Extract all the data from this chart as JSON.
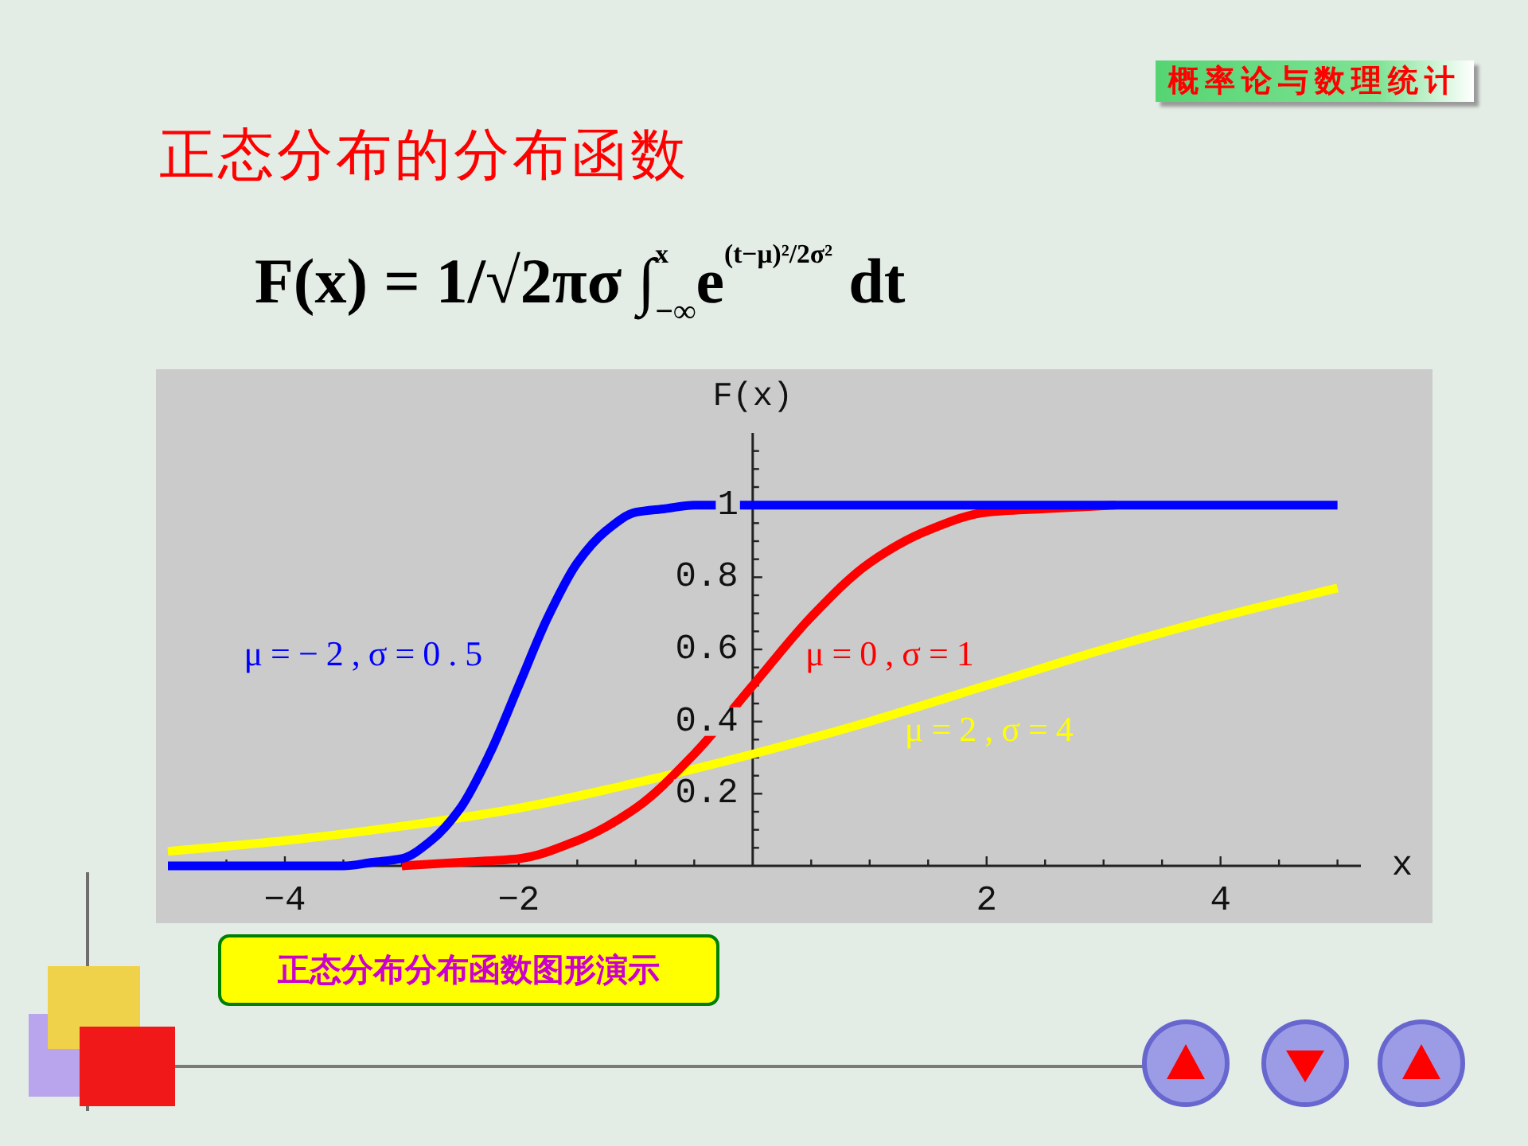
{
  "chart_data": {
    "type": "line",
    "title": "正态分布的分布函数",
    "subtitle": "F(x) = 1/√2πσ ∫$_{−∞}$$^{x}$e$^{(t−μ)²/2σ²}$ dt",
    "xlabel": "x",
    "ylabel": "F(x)",
    "annotations": [
      "概率论与数理统计",
      "正态分布分布函数图形演示"
    ],
    "xlim": [
      -5,
      5.2
    ],
    "ylim": [
      0,
      1.2
    ],
    "xticks": [
      {
        "value": -4.5,
        "label": null
      },
      {
        "value": -4,
        "label": "−4"
      },
      {
        "value": -3.5,
        "label": null
      },
      {
        "value": -3,
        "label": null
      },
      {
        "value": -2.5,
        "label": null
      },
      {
        "value": -2,
        "label": "−2"
      },
      {
        "value": -1.5,
        "label": null
      },
      {
        "value": -1,
        "label": null
      },
      {
        "value": -0.5,
        "label": null
      },
      {
        "value": 0.5,
        "label": null
      },
      {
        "value": 1,
        "label": null
      },
      {
        "value": 1.5,
        "label": null
      },
      2,
      {
        "value": 2.5,
        "label": null
      },
      {
        "value": 3,
        "label": null
      },
      {
        "value": 3.5,
        "label": null
      },
      4,
      {
        "value": 4.5,
        "label": null
      },
      {
        "value": 5,
        "label": null
      }
    ],
    "yticks": [
      {
        "value": 0.05,
        "label": null
      },
      {
        "value": 0.1,
        "label": null
      },
      {
        "value": 0.15,
        "label": null
      },
      0.2,
      {
        "value": 0.25,
        "label": null
      },
      {
        "value": 0.3,
        "label": null
      },
      {
        "value": 0.35,
        "label": null
      },
      0.4,
      {
        "value": 0.45,
        "label": null
      },
      {
        "value": 0.5,
        "label": null
      },
      {
        "value": 0.55,
        "label": null
      },
      0.6,
      {
        "value": 0.65,
        "label": null
      },
      {
        "value": 0.7,
        "label": null
      },
      {
        "value": 0.75,
        "label": null
      },
      0.8,
      {
        "value": 0.85,
        "label": null
      },
      {
        "value": 0.9,
        "label": null
      },
      {
        "value": 0.95,
        "label": null
      },
      1,
      {
        "value": 1.05,
        "label": null
      },
      {
        "value": 1.1,
        "label": null
      },
      {
        "value": 1.15,
        "label": null
      }
    ],
    "series": [
      {
        "name": "μ=−2,σ=0.5",
        "color": "#0000ff",
        "x": [
          -5,
          -4,
          -3.5,
          -3.25,
          -3,
          -2.75,
          -2.5,
          -2.25,
          -2,
          -1.75,
          -1.5,
          -1.25,
          -1,
          -0.75,
          -0.5,
          0,
          1,
          2,
          3,
          4,
          5
        ],
        "values": [
          0,
          0,
          0,
          0.01,
          0.02,
          0.07,
          0.16,
          0.31,
          0.5,
          0.69,
          0.84,
          0.93,
          0.98,
          0.99,
          1,
          1,
          1,
          1,
          1,
          1,
          1
        ]
      },
      {
        "name": "μ=0,σ=1",
        "color": "#ff0000",
        "x": [
          -3,
          -2.5,
          -2,
          -1.5,
          -1,
          -0.5,
          0,
          0.5,
          1,
          1.5,
          2,
          2.5,
          3.1
        ],
        "values": [
          0,
          0.01,
          0.02,
          0.07,
          0.16,
          0.31,
          0.5,
          0.69,
          0.84,
          0.93,
          0.98,
          0.99,
          1
        ]
      },
      {
        "name": "μ=2,σ=4",
        "color": "#ffff00",
        "x": [
          -5,
          -4,
          -3,
          -2,
          -1,
          0,
          1,
          2,
          3,
          4,
          5
        ],
        "values": [
          0.04,
          0.07,
          0.11,
          0.16,
          0.23,
          0.31,
          0.4,
          0.5,
          0.6,
          0.69,
          0.77
        ]
      }
    ]
  }
}
